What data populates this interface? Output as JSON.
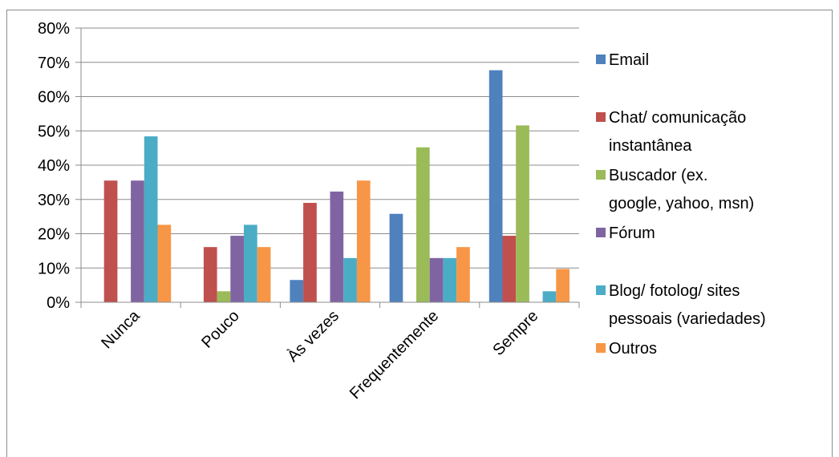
{
  "chart_data": {
    "type": "bar",
    "categories": [
      "Nunca",
      "Pouco",
      "Às vezes",
      "Frequentemente",
      "Sempre"
    ],
    "y_ticks": [
      "0%",
      "10%",
      "20%",
      "30%",
      "40%",
      "50%",
      "60%",
      "70%",
      "80%"
    ],
    "ylim": [
      0,
      0.8
    ],
    "grid": true,
    "legend_position": "right",
    "series": [
      {
        "name": "Email",
        "color": "#4F81BD",
        "values": [
          0,
          0,
          0.065,
          0.258,
          0.677
        ]
      },
      {
        "name": "Chat/ comunicação instantânea",
        "legend_lines": [
          "Chat/ comunicação",
          "instantânea"
        ],
        "color": "#C0504D",
        "values": [
          0.355,
          0.161,
          0.29,
          0,
          0.194
        ]
      },
      {
        "name": "Buscador (ex. google, yahoo, msn)",
        "legend_lines": [
          "Buscador (ex.",
          "google, yahoo, msn)"
        ],
        "color": "#9BBB59",
        "values": [
          0,
          0.032,
          0,
          0.452,
          0.516
        ]
      },
      {
        "name": "Fórum",
        "legend_lines": [
          "Fórum"
        ],
        "color": "#8064A2",
        "values": [
          0.355,
          0.194,
          0.323,
          0.129,
          0
        ]
      },
      {
        "name": "Blog/ fotolog/ sites pessoais (variedades)",
        "legend_lines": [
          "Blog/ fotolog/ sites",
          "pessoais (variedades)"
        ],
        "color": "#4BACC6",
        "values": [
          0.484,
          0.226,
          0.129,
          0.129,
          0.032
        ]
      },
      {
        "name": "Outros",
        "legend_lines": [
          "Outros"
        ],
        "color": "#F79646",
        "values": [
          0.226,
          0.161,
          0.355,
          0.161,
          0.097
        ]
      }
    ]
  }
}
